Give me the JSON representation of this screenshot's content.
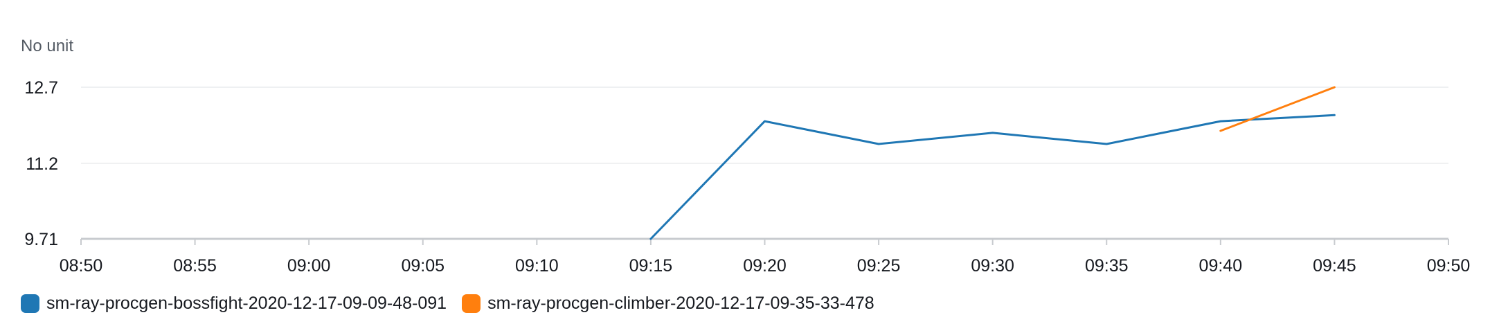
{
  "chart_data": {
    "type": "line",
    "unit_label": "No unit",
    "y_ticks": [
      "9.71",
      "11.2",
      "12.7"
    ],
    "y_tick_values": [
      9.71,
      11.2,
      12.7
    ],
    "ylim": [
      9.71,
      12.7
    ],
    "x_ticks": [
      "08:50",
      "08:55",
      "09:00",
      "09:05",
      "09:10",
      "09:15",
      "09:20",
      "09:25",
      "09:30",
      "09:35",
      "09:40",
      "09:45",
      "09:50"
    ],
    "xlim": [
      "08:50",
      "09:50"
    ],
    "grid": true,
    "legend_position": "bottom-left",
    "series": [
      {
        "name": "sm-ray-procgen-bossfight-2020-12-17-09-09-48-091",
        "color": "#1f77b4",
        "x": [
          "09:15",
          "09:20",
          "09:25",
          "09:30",
          "09:35",
          "09:40",
          "09:45"
        ],
        "values": [
          9.71,
          12.03,
          11.58,
          11.8,
          11.58,
          12.03,
          12.15
        ]
      },
      {
        "name": "sm-ray-procgen-climber-2020-12-17-09-35-33-478",
        "color": "#ff7f0e",
        "x": [
          "09:40",
          "09:45"
        ],
        "values": [
          11.84,
          12.7
        ]
      }
    ]
  }
}
